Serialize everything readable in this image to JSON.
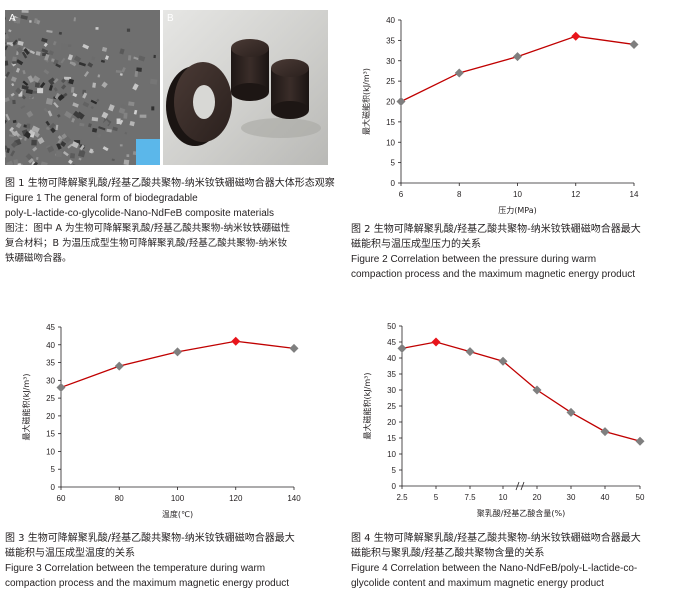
{
  "figure1": {
    "panel_a": "A",
    "panel_b": "B",
    "caption_zh": "图 1  生物可降解聚乳酸/羟基乙酸共聚物-纳米钕铁硼磁吻合器大体形态观察",
    "caption_en_1": "Figure 1  The general form of biodegradable",
    "caption_en_2": "poly-L-lactide-co-glycolide-Nano-NdFeB composite materials",
    "note_1": "图注：图中 A 为生物可降解聚乳酸/羟基乙酸共聚物-纳米钕铁硼磁性",
    "note_2": "复合材料；B 为温压成型生物可降解聚乳酸/羟基乙酸共聚物-纳米钕",
    "note_3": "铁硼磁吻合器。"
  },
  "figure2": {
    "caption_zh_1": "图 2  生物可降解聚乳酸/羟基乙酸共聚物-纳米钕铁硼磁吻合器最大",
    "caption_zh_2": "磁能积与温压成型压力的关系",
    "caption_en_1": "Figure 2  Correlation between the pressure during warm",
    "caption_en_2": "compaction process and the maximum magnetic energy product"
  },
  "figure3": {
    "caption_zh_1": "图 3  生物可降解聚乳酸/羟基乙酸共聚物-纳米钕铁硼磁吻合器最大",
    "caption_zh_2": "磁能积与温压成型温度的关系",
    "caption_en_1": "Figure 3  Correlation between the temperature during warm",
    "caption_en_2": "compaction process and the maximum magnetic energy product"
  },
  "figure4": {
    "caption_zh_1": "图 4  生物可降解聚乳酸/羟基乙酸共聚物-纳米钕铁硼磁吻合器最大",
    "caption_zh_2": "磁能积与聚乳酸/羟基乙酸共聚物含量的关系",
    "caption_en_1": "Figure 4  Correlation between the Nano-NdFeB/poly-L-lactide-co-",
    "caption_en_2": "glycolide content and maximum magnetic energy product"
  },
  "chart_data": [
    {
      "type": "line",
      "xlabel": "压力(MPa)",
      "ylabel": "最大磁能积(kJ/m³)",
      "x": [
        6,
        8,
        10,
        12,
        14
      ],
      "series": [
        {
          "values": [
            20,
            27,
            31,
            36,
            34
          ]
        }
      ],
      "highlight_index": 3,
      "xticks": [
        6,
        8,
        10,
        12,
        14
      ],
      "yticks": [
        0,
        5,
        10,
        15,
        20,
        25,
        30,
        35,
        40
      ],
      "xlim": [
        6,
        14
      ],
      "ylim": [
        0,
        40
      ],
      "line_color": "#c00000",
      "marker_color": "#7f7f7f",
      "highlight_color": "#e8141b",
      "grid": false
    },
    {
      "type": "line",
      "xlabel": "温度(℃)",
      "ylabel": "最大磁能积(kJ/m³)",
      "x": [
        60,
        80,
        100,
        120,
        140
      ],
      "series": [
        {
          "values": [
            28,
            34,
            38,
            41,
            39
          ]
        }
      ],
      "highlight_index": 3,
      "xticks": [
        60,
        80,
        100,
        120,
        140
      ],
      "yticks": [
        0,
        5,
        10,
        15,
        20,
        25,
        30,
        35,
        40,
        45
      ],
      "xlim": [
        60,
        140
      ],
      "ylim": [
        0,
        45
      ],
      "line_color": "#c00000",
      "marker_color": "#7f7f7f",
      "highlight_color": "#e8141b",
      "grid": false
    },
    {
      "type": "line",
      "xlabel": "聚乳酸/羟基乙酸含量(%)",
      "ylabel": "最大磁能积(kJ/m³)",
      "categories": [
        "2.5",
        "5",
        "7.5",
        "10",
        "20",
        "30",
        "40",
        "50"
      ],
      "series": [
        {
          "values": [
            43,
            45,
            42,
            39,
            30,
            23,
            17,
            14
          ]
        }
      ],
      "highlight_index": 1,
      "yticks": [
        0,
        5,
        10,
        15,
        20,
        25,
        30,
        35,
        40,
        45,
        50
      ],
      "ylim": [
        0,
        50
      ],
      "axis_break": "between 10 and 20",
      "line_color": "#c00000",
      "marker_color": "#7f7f7f",
      "highlight_color": "#e8141b",
      "grid": false
    }
  ]
}
